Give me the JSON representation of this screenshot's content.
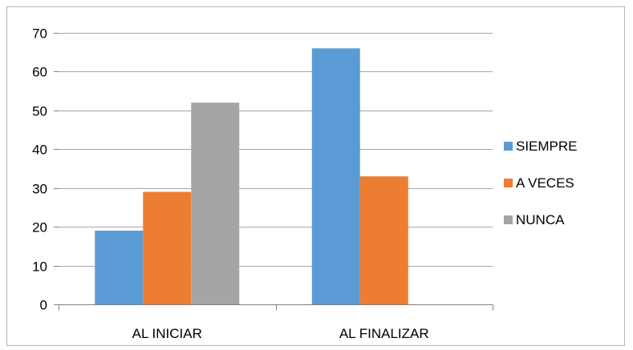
{
  "chart_data": {
    "type": "bar",
    "categories": [
      "AL INICIAR",
      "AL FINALIZAR"
    ],
    "series": [
      {
        "name": "SIEMPRE",
        "values": [
          19,
          66
        ],
        "color": "#5B9BD5"
      },
      {
        "name": "A VECES",
        "values": [
          29,
          33
        ],
        "color": "#ED7D31"
      },
      {
        "name": "NUNCA",
        "values": [
          52,
          null
        ],
        "color": "#A5A5A5"
      }
    ],
    "ylim": [
      0,
      70
    ],
    "yticks": [
      0,
      10,
      20,
      30,
      40,
      50,
      60,
      70
    ],
    "grid": true,
    "legend_position": "right",
    "gridline_color": "#a6a6a6",
    "axis_color": "#808080"
  }
}
